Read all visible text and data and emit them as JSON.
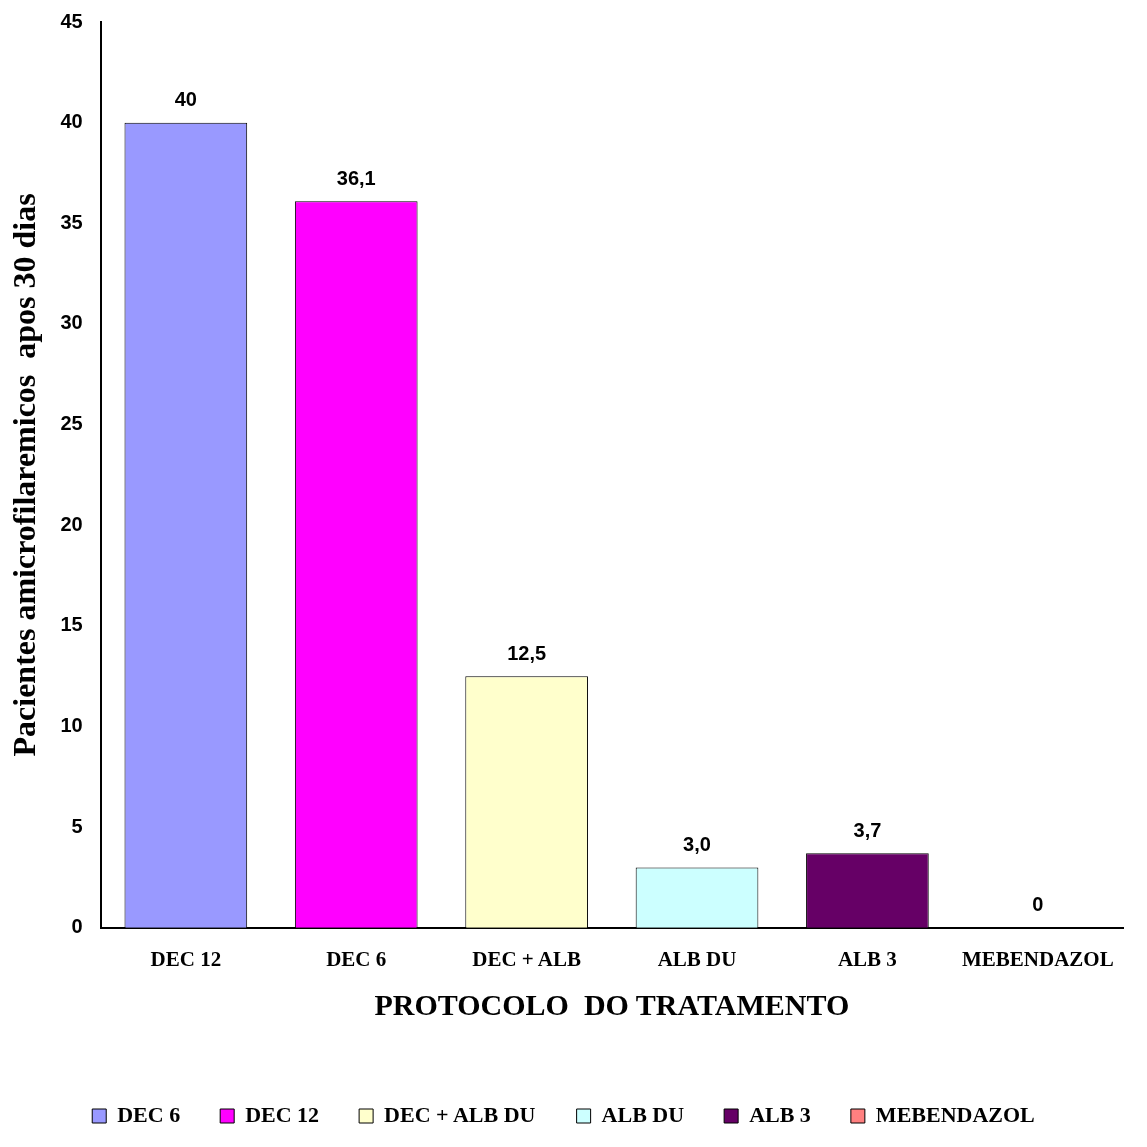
{
  "chart_data": {
    "type": "bar",
    "xlabel": "PROTOCOLO  DO TRATAMENTO",
    "ylabel": "Pacientes amicrofilaremicos  apos 30 dias",
    "categories": [
      "DEC 12",
      "DEC 6",
      "DEC + ALB",
      "ALB DU",
      "ALB 3",
      "MEBENDAZOL"
    ],
    "series": [
      {
        "name": "DEC 6",
        "color": "#9999ff",
        "values": [
          40,
          null,
          null,
          null,
          null,
          null
        ],
        "value_labels": [
          "40",
          null,
          null,
          null,
          null,
          null
        ]
      },
      {
        "name": "DEC 12",
        "color": "#ff00ff",
        "values": [
          null,
          36.1,
          null,
          null,
          null,
          null
        ],
        "value_labels": [
          null,
          "36,1",
          null,
          null,
          null,
          null
        ]
      },
      {
        "name": "DEC + ALB DU",
        "color": "#ffffcc",
        "values": [
          null,
          null,
          12.5,
          null,
          null,
          null
        ],
        "value_labels": [
          null,
          null,
          "12,5",
          null,
          null,
          null
        ]
      },
      {
        "name": "ALB DU",
        "color": "#ccffff",
        "values": [
          null,
          null,
          null,
          3.0,
          null,
          null
        ],
        "value_labels": [
          null,
          null,
          null,
          "3,0",
          null,
          null
        ]
      },
      {
        "name": "ALB 3",
        "color": "#660066",
        "values": [
          null,
          null,
          null,
          null,
          3.7,
          null
        ],
        "value_labels": [
          null,
          null,
          null,
          null,
          "3,7",
          null
        ]
      },
      {
        "name": "MEBENDAZOL",
        "color": "#ff8080",
        "values": [
          null,
          null,
          null,
          null,
          null,
          0
        ],
        "value_labels": [
          null,
          null,
          null,
          null,
          null,
          "0"
        ]
      }
    ],
    "ylim": [
      0,
      45
    ],
    "yticks": [
      0,
      5,
      10,
      15,
      20,
      25,
      30,
      35,
      40,
      45
    ],
    "grid": false,
    "legend": "bottom"
  }
}
